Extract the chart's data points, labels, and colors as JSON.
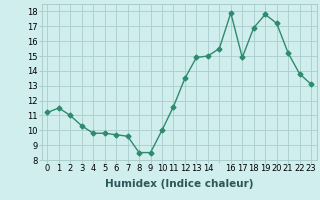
{
  "x": [
    0,
    1,
    2,
    3,
    4,
    5,
    6,
    7,
    8,
    9,
    10,
    11,
    12,
    13,
    14,
    15,
    16,
    17,
    18,
    19,
    20,
    21,
    22,
    23
  ],
  "y": [
    11.2,
    11.5,
    11.0,
    10.3,
    9.8,
    9.8,
    9.7,
    9.6,
    8.5,
    8.5,
    10.0,
    11.6,
    13.5,
    14.9,
    15.0,
    15.5,
    17.9,
    14.9,
    16.9,
    17.8,
    17.2,
    15.2,
    13.8,
    13.1
  ],
  "line_color": "#2e8b6e",
  "marker": "D",
  "marker_size": 2.5,
  "bg_color": "#d0eeee",
  "grid_color": "#aacccc",
  "xlabel": "Humidex (Indice chaleur)",
  "ylabel": "",
  "xlim": [
    -0.5,
    23.5
  ],
  "ylim": [
    8,
    18.5
  ],
  "yticks": [
    8,
    9,
    10,
    11,
    12,
    13,
    14,
    15,
    16,
    17,
    18
  ],
  "xtick_labels": [
    "0",
    "1",
    "2",
    "3",
    "4",
    "5",
    "6",
    "7",
    "8",
    "9",
    "10",
    "11",
    "12",
    "13",
    "14",
    "",
    "16",
    "17",
    "18",
    "19",
    "20",
    "21",
    "22",
    "23"
  ],
  "tick_fontsize": 6.0,
  "xlabel_fontsize": 7.5,
  "line_width": 1.0
}
